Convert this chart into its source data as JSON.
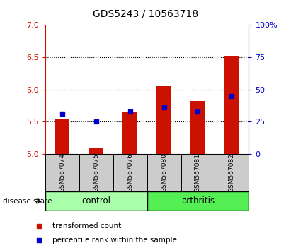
{
  "title": "GDS5243 / 10563718",
  "samples": [
    "GSM567074",
    "GSM567075",
    "GSM567076",
    "GSM567080",
    "GSM567081",
    "GSM567082"
  ],
  "groups": [
    "control",
    "control",
    "control",
    "arthritis",
    "arthritis",
    "arthritis"
  ],
  "red_bar_tops": [
    5.55,
    5.1,
    5.65,
    6.05,
    5.82,
    6.52
  ],
  "blue_marker_y": [
    5.62,
    5.5,
    5.65,
    5.72,
    5.65,
    5.9
  ],
  "ylim_left": [
    5,
    7
  ],
  "ylim_right": [
    0,
    100
  ],
  "yticks_left": [
    5,
    5.5,
    6,
    6.5,
    7
  ],
  "yticks_right": [
    0,
    25,
    50,
    75,
    100
  ],
  "bar_bottom": 5,
  "bar_color": "#cc1100",
  "marker_color": "#0000cc",
  "control_color": "#aaffaa",
  "arthritis_color": "#55ee55",
  "label_box_color": "#cccccc",
  "legend_red": "transformed count",
  "legend_blue": "percentile rank within the sample",
  "disease_label": "disease state",
  "bar_width": 0.45
}
